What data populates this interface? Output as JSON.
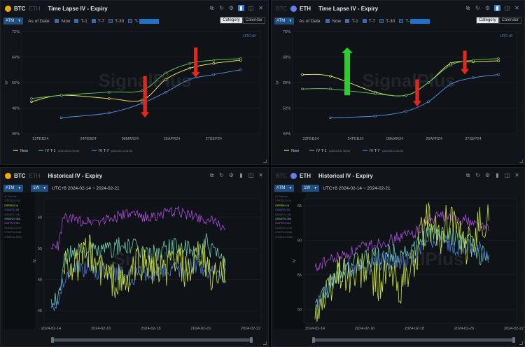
{
  "brand": {
    "watermark": "SignalPlus"
  },
  "colors": {
    "btc": "#f2a900",
    "eth": "#627eea",
    "now": "#e8e05a",
    "t1": "#5cc05c",
    "t7": "#4a90e2",
    "arrow_red": "#e0281c",
    "arrow_green": "#2ecc2e",
    "lime": "#cde634",
    "blue": "#4a80d8",
    "teal": "#6fd2b0",
    "purple": "#a84fd8"
  },
  "icons": [
    "external-link-icon",
    "reset-icon",
    "settings-icon",
    "expand-icon",
    "camera-icon",
    "close-icon"
  ],
  "panels": {
    "tl": {
      "asset": "BTC",
      "other": "ETH",
      "title": "Time Lapse IV - Expiry",
      "atm": "ATM",
      "as_of": "As of Date:",
      "opt_now": "Now",
      "opt_t1": "T-1",
      "opt_t7": "T-7",
      "opt_t30": "T-30",
      "opt_t": "T-",
      "tab_category": "Category",
      "tab_calendar": "Calendar",
      "utc": "UTC+8",
      "ylabel": "IV",
      "legend": {
        "now": "Now",
        "t1": "IV T-1",
        "t1_date": "(2024-02-20 16:00)",
        "t7": "IV T-7",
        "t7_date": "(2024-02-14 16:00)"
      }
    },
    "tr": {
      "asset": "ETH",
      "other": "BTC",
      "title": "Time Lapse IV - Expiry",
      "atm": "ATM",
      "as_of": "As of Date:",
      "opt_now": "Now",
      "opt_t1": "T-1",
      "opt_t7": "T-7",
      "opt_t30": "T-30",
      "opt_t": "T-",
      "tab_category": "Category",
      "tab_calendar": "Calendar",
      "utc": "UTC+8",
      "ylabel": "IV",
      "legend": {
        "now": "Now",
        "t1": "IV T-1",
        "t1_date": "(2024-02-20 16:00)",
        "t7": "IV T-7",
        "t7_date": "(2024-02-14 16:00)"
      }
    },
    "bl": {
      "asset": "BTC",
      "other": "ETH",
      "title": "Historical IV - Expiry",
      "atm": "ATM",
      "period": "1W",
      "range": "UTC+8 2024-02-14 ~ 2024-02-21",
      "ylabel": "IV",
      "side_legend": [
        {
          "label": "All Expiries",
          "color": "#5a6068"
        },
        {
          "label": "22FEB24 0.3d",
          "color": "#5a6068"
        },
        {
          "label": "23FEB24 1d",
          "color": "#cde634"
        },
        {
          "label": "01MAR24 8d",
          "color": "#4a80d8"
        },
        {
          "label": "08MAR24 15d",
          "color": "#5a6068"
        },
        {
          "label": "29MAR24 36d",
          "color": "#6fd2b0"
        },
        {
          "label": "26APR24 64d",
          "color": "#a84fd8"
        },
        {
          "label": "28JUN24 127d",
          "color": "#5a6068"
        },
        {
          "label": "27SEP24 218d",
          "color": "#5a6068"
        },
        {
          "label": "27DEC24 309d",
          "color": "#5a6068"
        }
      ]
    },
    "br": {
      "asset": "ETH",
      "other": "BTC",
      "title": "Historical IV - Expiry",
      "atm": "ATM",
      "period": "1W",
      "range": "UTC+8 2024-02-14 ~ 2024-02-21",
      "ylabel": "IV",
      "side_legend": [
        {
          "label": "All Expiries",
          "color": "#5a6068"
        },
        {
          "label": "22FEB24 0.3d",
          "color": "#5a6068"
        },
        {
          "label": "23FEB24 1d",
          "color": "#cde634"
        },
        {
          "label": "01MAR24 8d",
          "color": "#4a80d8"
        },
        {
          "label": "08MAR24 15d",
          "color": "#5a6068"
        },
        {
          "label": "29MAR24 36d",
          "color": "#6fd2b0"
        },
        {
          "label": "26APR24 64d",
          "color": "#a84fd8"
        },
        {
          "label": "28JUN24 127d",
          "color": "#5a6068"
        },
        {
          "label": "27SEP24 218d",
          "color": "#5a6068"
        },
        {
          "label": "27DEC24 309d",
          "color": "#5a6068"
        }
      ]
    }
  },
  "chart_data": [
    {
      "id": "tl",
      "type": "line",
      "title": "Time Lapse IV - Expiry",
      "ylabel": "IV",
      "ylim": [
        40,
        72
      ],
      "yticks": [
        "40%",
        "48%",
        "56%",
        "64%",
        "72%"
      ],
      "ytick_values": [
        40,
        48,
        56,
        64,
        72
      ],
      "xlim": [
        0,
        7.5
      ],
      "xticks": [
        "22FEB24",
        "24FEB24",
        "08MAR24",
        "26APR24",
        "27SEP24"
      ],
      "xtick_values": [
        0.3,
        1.9,
        3.3,
        4.7,
        6.1
      ],
      "series": [
        {
          "name": "Now",
          "color_key": "now",
          "x": [
            0,
            1,
            2.6,
            3.7,
            4.5,
            5.3,
            6.1,
            7.0
          ],
          "y": [
            50,
            52,
            51,
            50.5,
            57,
            60.5,
            62,
            63
          ]
        },
        {
          "name": "IV T-1",
          "color_key": "t1",
          "x": [
            0,
            1,
            2.6,
            3.7,
            4.5,
            5.3,
            6.1,
            7.0
          ],
          "y": [
            51,
            52,
            53,
            53.5,
            59,
            62,
            63,
            63.5
          ]
        },
        {
          "name": "IV T-7",
          "color_key": "t7",
          "x": [
            1,
            2.6,
            3.7,
            4.5,
            5.3,
            6.1,
            7.0
          ],
          "y": [
            45,
            46.5,
            49.5,
            53,
            57,
            58.5,
            60
          ]
        }
      ],
      "arrows": [
        {
          "x": 3.8,
          "y_from": 58,
          "y_to": 45,
          "color_key": "arrow_red"
        },
        {
          "x": 5.5,
          "y_from": 67,
          "y_to": 57.5,
          "color_key": "arrow_red"
        }
      ]
    },
    {
      "id": "tr",
      "type": "line",
      "title": "Time Lapse IV - Expiry",
      "ylabel": "IV",
      "ylim": [
        44,
        76
      ],
      "yticks": [
        "44%",
        "52%",
        "60%",
        "68%",
        "76%"
      ],
      "ytick_values": [
        44,
        52,
        60,
        68,
        76
      ],
      "xlim": [
        0,
        7.5
      ],
      "xticks": [
        "22FEB24",
        "24FEB24",
        "08MAR24",
        "26APR24",
        "27SEP24"
      ],
      "xtick_values": [
        0.3,
        1.9,
        3.3,
        4.7,
        6.1
      ],
      "series": [
        {
          "name": "Now",
          "color_key": "now",
          "x": [
            0,
            1,
            2.6,
            3.7,
            4.5,
            5.3,
            6.1,
            7.0
          ],
          "y": [
            62.5,
            62,
            57,
            56,
            60,
            66,
            66.5,
            66.8
          ]
        },
        {
          "name": "IV T-1",
          "color_key": "t1",
          "x": [
            0,
            1,
            2.6,
            3.7,
            4.5,
            5.3,
            6.1,
            7.0
          ],
          "y": [
            58,
            58,
            56.5,
            56,
            60,
            65.5,
            67,
            67.5
          ]
        },
        {
          "name": "IV T-7",
          "color_key": "t7",
          "x": [
            1,
            2.6,
            3.7,
            4.5,
            5.3,
            6.1,
            7.0
          ],
          "y": [
            49,
            49.5,
            51,
            54,
            59.5,
            61.5,
            62.5
          ]
        }
      ],
      "arrows": [
        {
          "x": 1.6,
          "y_from": 56,
          "y_to": 71,
          "color_key": "arrow_green"
        },
        {
          "x": 4.1,
          "y_from": 61,
          "y_to": 52.5,
          "color_key": "arrow_red"
        },
        {
          "x": 5.8,
          "y_from": 70,
          "y_to": 62.5,
          "color_key": "arrow_red"
        }
      ]
    },
    {
      "id": "bl",
      "type": "line",
      "title": "Historical IV - Expiry",
      "ylabel": "IV",
      "ylim": [
        43,
        63
      ],
      "yticks": [
        "45",
        "50",
        "55",
        "60"
      ],
      "ytick_values": [
        45,
        50,
        55,
        60
      ],
      "xlim": [
        0,
        8
      ],
      "xticks": [
        "2024-02-14",
        "2024-02-16",
        "2024-02-18",
        "2024-02-20",
        "2024-02-22"
      ],
      "xtick_values": [
        0,
        2,
        4,
        6,
        8
      ],
      "series": [
        {
          "name": "26APR24 64d",
          "color_key": "purple",
          "x": [
            0,
            0.3,
            0.5,
            1,
            2,
            3,
            4,
            5,
            6,
            7
          ],
          "y": [
            55,
            55.5,
            60,
            59.5,
            59.5,
            60.5,
            60,
            61,
            60,
            58.5
          ]
        },
        {
          "name": "29MAR24 36d",
          "color_key": "teal",
          "x": [
            0,
            0.3,
            0.5,
            1,
            2,
            3,
            4,
            5,
            5.8,
            6.2,
            7
          ],
          "y": [
            46,
            47,
            53,
            55,
            54.5,
            55.5,
            54,
            55.5,
            54,
            56,
            52
          ]
        },
        {
          "name": "01MAR24 8d",
          "color_key": "blue",
          "x": [
            0,
            0.3,
            0.5,
            1,
            2,
            3,
            4,
            5,
            6,
            7
          ],
          "y": [
            47,
            46,
            50,
            52,
            51.5,
            50.5,
            51,
            51.5,
            52,
            50.5
          ]
        },
        {
          "name": "23FEB24 1d",
          "color_key": "lime",
          "x": [
            0.5,
            1,
            1.5,
            2,
            2.5,
            3,
            3.5,
            4,
            4.5,
            5,
            5.5,
            6,
            6.5,
            7
          ],
          "y": [
            53,
            52,
            54.5,
            51.5,
            50,
            49,
            53,
            52,
            51,
            53.5,
            50.5,
            54,
            50,
            51
          ]
        }
      ]
    },
    {
      "id": "br",
      "type": "line",
      "title": "Historical IV - Expiry",
      "ylabel": "IV",
      "ylim": [
        48,
        66
      ],
      "yticks": [
        "50",
        "55",
        "60",
        "65"
      ],
      "ytick_values": [
        50,
        55,
        60,
        65
      ],
      "xlim": [
        0,
        8
      ],
      "xticks": [
        "2024-02-14",
        "2024-02-16",
        "2024-02-18",
        "2024-02-20",
        "2024-02-22"
      ],
      "xtick_values": [
        0,
        2,
        4,
        6,
        8
      ],
      "series": [
        {
          "name": "26APR24 64d",
          "color_key": "purple",
          "x": [
            0,
            0.5,
            1,
            2,
            3,
            4,
            4.5,
            5,
            6,
            7
          ],
          "y": [
            56,
            57,
            57.5,
            59,
            60,
            61,
            63,
            63.5,
            63,
            61.5
          ]
        },
        {
          "name": "29MAR24 36d",
          "color_key": "teal",
          "x": [
            0,
            0.5,
            1,
            2,
            3,
            4,
            4.5,
            5,
            6,
            7
          ],
          "y": [
            50,
            53,
            56,
            57,
            58,
            58.5,
            61,
            61,
            60,
            57
          ]
        },
        {
          "name": "01MAR24 8d",
          "color_key": "blue",
          "x": [
            0,
            0.5,
            1,
            2,
            3,
            4,
            4.5,
            5,
            6,
            7
          ],
          "y": [
            50,
            53,
            55.5,
            56.5,
            57,
            57,
            60.5,
            60,
            59,
            58
          ]
        },
        {
          "name": "23FEB24 1d",
          "color_key": "lime",
          "x": [
            0,
            0.5,
            1,
            1.5,
            2,
            2.5,
            3,
            3.5,
            4,
            4.5,
            5,
            5.5,
            6,
            6.5,
            7
          ],
          "y": [
            50,
            52,
            56,
            54.5,
            56,
            54,
            55,
            53,
            57,
            63,
            60,
            64,
            58,
            62,
            63
          ]
        }
      ]
    }
  ]
}
